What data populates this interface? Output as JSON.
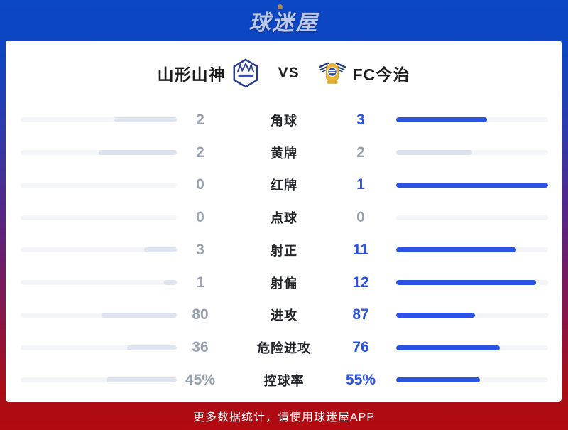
{
  "logo": {
    "text": "球迷屋"
  },
  "header": {
    "home_team": "山形山神",
    "vs_label": "VS",
    "away_team": "FC今治"
  },
  "stats": {
    "rows": [
      {
        "label": "角球",
        "home": "2",
        "away": "3",
        "home_pct": 40,
        "away_pct": 60,
        "home_highlight": false,
        "away_highlight": true
      },
      {
        "label": "黄牌",
        "home": "2",
        "away": "2",
        "home_pct": 50,
        "away_pct": 50,
        "home_highlight": false,
        "away_highlight": false
      },
      {
        "label": "红牌",
        "home": "0",
        "away": "1",
        "home_pct": 0,
        "away_pct": 100,
        "home_highlight": false,
        "away_highlight": true
      },
      {
        "label": "点球",
        "home": "0",
        "away": "0",
        "home_pct": 0,
        "away_pct": 0,
        "home_highlight": false,
        "away_highlight": false
      },
      {
        "label": "射正",
        "home": "3",
        "away": "11",
        "home_pct": 21,
        "away_pct": 79,
        "home_highlight": false,
        "away_highlight": true
      },
      {
        "label": "射偏",
        "home": "1",
        "away": "12",
        "home_pct": 8,
        "away_pct": 92,
        "home_highlight": false,
        "away_highlight": true
      },
      {
        "label": "进攻",
        "home": "80",
        "away": "87",
        "home_pct": 48,
        "away_pct": 52,
        "home_highlight": false,
        "away_highlight": true
      },
      {
        "label": "危险进攻",
        "home": "36",
        "away": "76",
        "home_pct": 32,
        "away_pct": 68,
        "home_highlight": false,
        "away_highlight": true
      },
      {
        "label": "控球率",
        "home": "45%",
        "away": "55%",
        "home_pct": 45,
        "away_pct": 55,
        "home_highlight": false,
        "away_highlight": true
      }
    ]
  },
  "footer": {
    "text": "更多数据统计，请使用球迷屋APP"
  },
  "colors": {
    "accent_blue": "#2c53e1",
    "bar_track": "#f3f5f9",
    "bar_neutral": "#dde4ef",
    "muted_value": "#98a1b0",
    "header_blue": "#0c47c4",
    "footer_red": "#b20a10"
  }
}
